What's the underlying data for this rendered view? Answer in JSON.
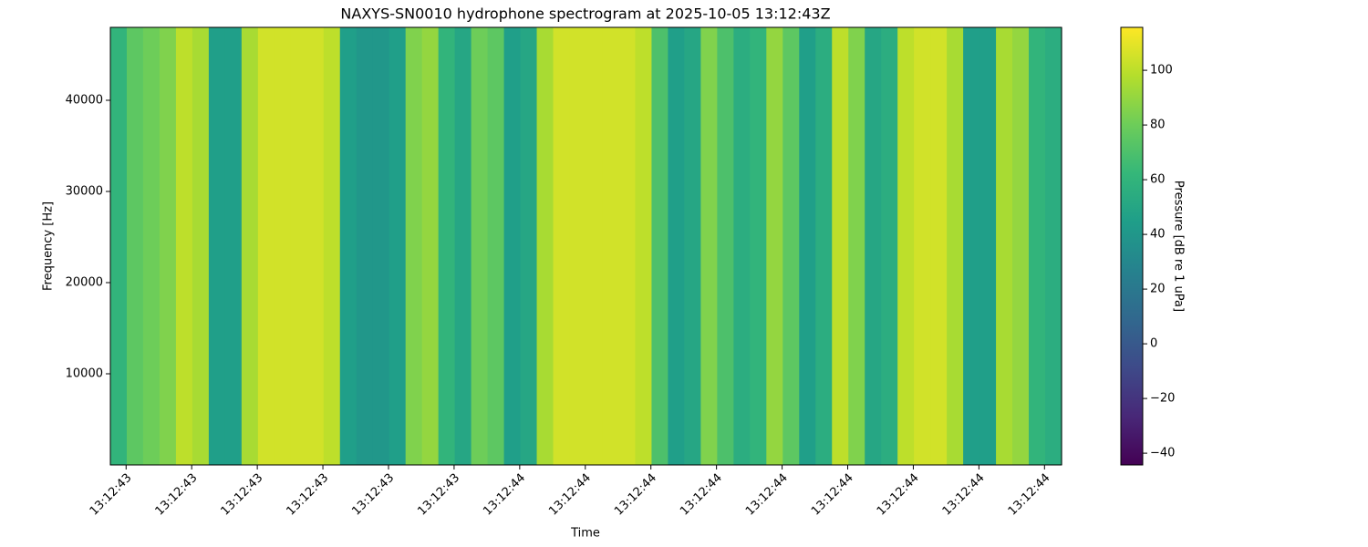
{
  "chart_data": {
    "type": "heatmap",
    "title": "NAXYS-SN0010 hydrophone spectrogram at 2025-10-05 13:12:43Z",
    "xlabel": "Time",
    "ylabel": "Frequency [Hz]",
    "colorbar_label": "Pressure [dB re 1 uPa]",
    "colormap": "viridis",
    "x": [
      43.3885,
      43.4135,
      43.4385,
      43.4635,
      43.4885,
      43.5135,
      43.5385,
      43.5635,
      43.5885,
      43.6135,
      43.6385,
      43.6635,
      43.6885,
      43.7135,
      43.7385,
      43.7635,
      43.7885,
      43.8135,
      43.8385,
      43.8635,
      43.8885,
      43.9135,
      43.9385,
      43.9635,
      43.9885,
      44.0135,
      44.0385,
      44.0635,
      44.0885,
      44.1135,
      44.1385,
      44.1635,
      44.1885,
      44.2135,
      44.2385,
      44.2635,
      44.2885,
      44.3135,
      44.3385,
      44.3635,
      44.3885,
      44.4135,
      44.4385,
      44.4635,
      44.4885,
      44.5135,
      44.5385,
      44.5635,
      44.5885,
      44.6135,
      44.6385,
      44.6635,
      44.6885,
      44.7135,
      44.7385,
      44.7635,
      44.7885,
      44.8135
    ],
    "values": [
      60,
      75,
      80,
      85,
      100,
      95,
      45,
      45,
      95,
      105,
      105,
      105,
      105,
      100,
      45,
      40,
      40,
      45,
      85,
      90,
      60,
      50,
      80,
      75,
      45,
      50,
      95,
      105,
      105,
      105,
      105,
      105,
      100,
      70,
      45,
      50,
      85,
      70,
      55,
      60,
      90,
      75,
      45,
      55,
      100,
      85,
      50,
      55,
      100,
      105,
      105,
      95,
      45,
      45,
      95,
      90,
      60,
      55
    ],
    "xlim": [
      43.376,
      44.826
    ],
    "xticks": [
      {
        "value": 43.4,
        "label": "13:12:43"
      },
      {
        "value": 43.5,
        "label": "13:12:43"
      },
      {
        "value": 43.6,
        "label": "13:12:43"
      },
      {
        "value": 43.7,
        "label": "13:12:43"
      },
      {
        "value": 43.8,
        "label": "13:12:43"
      },
      {
        "value": 43.9,
        "label": "13:12:43"
      },
      {
        "value": 44.0,
        "label": "13:12:44"
      },
      {
        "value": 44.1,
        "label": "13:12:44"
      },
      {
        "value": 44.2,
        "label": "13:12:44"
      },
      {
        "value": 44.3,
        "label": "13:12:44"
      },
      {
        "value": 44.4,
        "label": "13:12:44"
      },
      {
        "value": 44.5,
        "label": "13:12:44"
      },
      {
        "value": 44.6,
        "label": "13:12:44"
      },
      {
        "value": 44.7,
        "label": "13:12:44"
      },
      {
        "value": 44.8,
        "label": "13:12:44"
      }
    ],
    "ylim": [
      0,
      48000
    ],
    "yticks": [
      10000,
      20000,
      30000,
      40000
    ],
    "clim": [
      -44.3,
      115.7
    ],
    "cticks": [
      {
        "value": -40,
        "label": "−40"
      },
      {
        "value": -20,
        "label": "−20"
      },
      0,
      20,
      40,
      60,
      80,
      100
    ]
  }
}
